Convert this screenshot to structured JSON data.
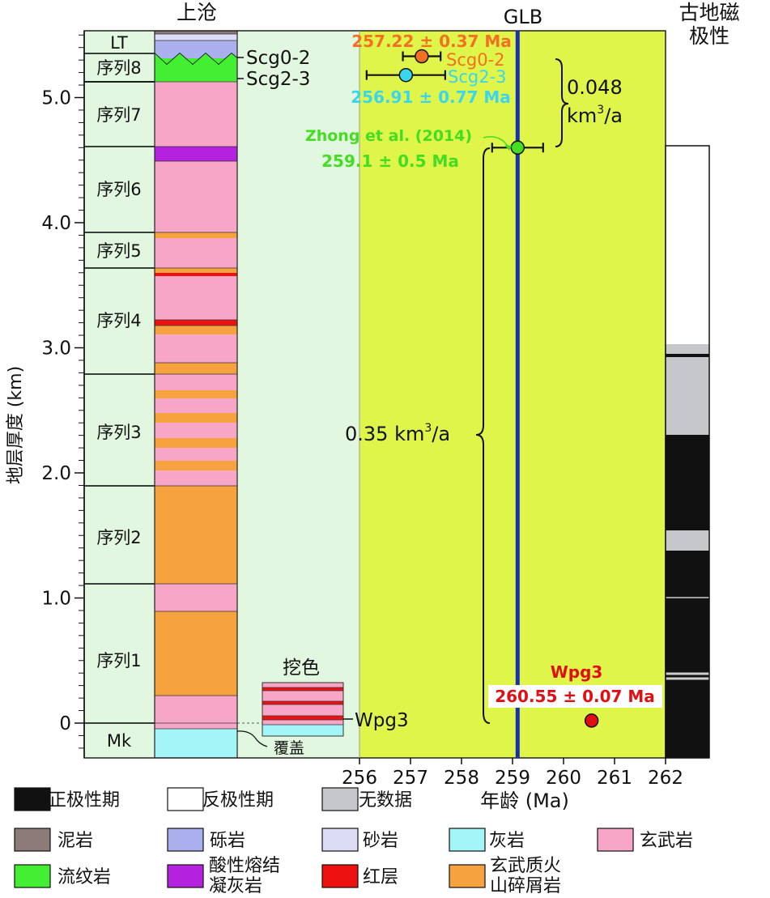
{
  "titles": {
    "section": "上沧",
    "boundary": "GLB",
    "paleomag": [
      "古地磁",
      "极性"
    ]
  },
  "yaxis": {
    "label": "地层厚度 (km)",
    "ticks": [
      "0",
      "1.0",
      "2.0",
      "3.0",
      "4.0",
      "5.0"
    ]
  },
  "xaxis": {
    "label": "年龄 (Ma)",
    "ticks": [
      "256",
      "257",
      "258",
      "259",
      "260",
      "261",
      "262"
    ]
  },
  "units": [
    "LT",
    "序列8",
    "序列7",
    "序列6",
    "序列5",
    "序列4",
    "序列3",
    "序列2",
    "序列1",
    "Mk"
  ],
  "samples": {
    "scg02": {
      "label": "Scg0-2",
      "age_text": "257.22 ± 0.37 Ma"
    },
    "scg23": {
      "label": "Scg2-3",
      "age_text": "256.91 ± 0.77 Ma"
    },
    "zhong": {
      "label": "Zhong et al. (2014)",
      "age_text": "259.1 ± 0.5 Ma"
    },
    "wpg3": {
      "label": "Wpg3",
      "age_text": "260.55 ± 0.07 Ma"
    }
  },
  "rates": {
    "upper_value": "0.048",
    "upper_unit": "km",
    "upper_exp": "3",
    "upper_suffix": "/a",
    "lower_prefix": "0.35 km",
    "lower_exp": "3",
    "lower_suffix": "/a"
  },
  "annotations": {
    "wase": "挖色",
    "cover": "覆盖",
    "scg02_side": "Scg0-2",
    "scg23_side": "Scg2-3",
    "wpg3_side": "Wpg3"
  },
  "legend": {
    "row1": [
      "正极性期",
      "反极性期",
      "无数据"
    ],
    "row2": [
      "泥岩",
      "砾岩",
      "砂岩",
      "灰岩",
      "玄武岩"
    ],
    "row3": [
      [
        "流纹岩"
      ],
      [
        "酸性熔结",
        "凝灰岩"
      ],
      [
        "红层"
      ],
      [
        "玄武质火",
        "山碎屑岩"
      ]
    ]
  },
  "colors": {
    "mudstone": "#8c7b78",
    "conglomerate": "#aab0ee",
    "sandstone": "#dcdcf6",
    "limestone": "#a3f5f7",
    "basalt": "#f7a6c8",
    "rhyolite": "#44ee33",
    "tuff": "#b422e0",
    "redbed": "#ee1111",
    "volcaniclastic": "#f5a23f",
    "unit_bg": "#e2f7df",
    "plot_bg": "#e2f7df",
    "age_bg": "#dff54a",
    "glb": "#1a2fb0",
    "scg02": "#f36f22",
    "scg23": "#3ad6f0",
    "zhong": "#44dd22",
    "wpg3": "#e00f14",
    "normal": "#111111",
    "reverse": "#ffffff",
    "nodata": "#c6c7ca"
  },
  "chart_data": {
    "type": "scatter",
    "xlabel": "年龄 (Ma)",
    "ylabel": "地层厚度 (km)",
    "xlim": [
      256,
      262
    ],
    "ylim": [
      -0.28,
      5.58
    ],
    "series": [
      {
        "name": "Scg0-2",
        "points": [
          {
            "x": 257.22,
            "y": 5.33,
            "xerr": 0.37
          }
        ]
      },
      {
        "name": "Scg2-3",
        "points": [
          {
            "x": 256.91,
            "y": 5.18,
            "xerr": 0.77
          }
        ]
      },
      {
        "name": "Zhong et al. (2014)",
        "points": [
          {
            "x": 259.1,
            "y": 4.6,
            "xerr": 0.5
          }
        ]
      },
      {
        "name": "Wpg3",
        "points": [
          {
            "x": 260.55,
            "y": 0.02,
            "xerr": 0.07
          }
        ]
      }
    ],
    "vertical_line": {
      "label": "GLB",
      "x": 259.1
    }
  }
}
